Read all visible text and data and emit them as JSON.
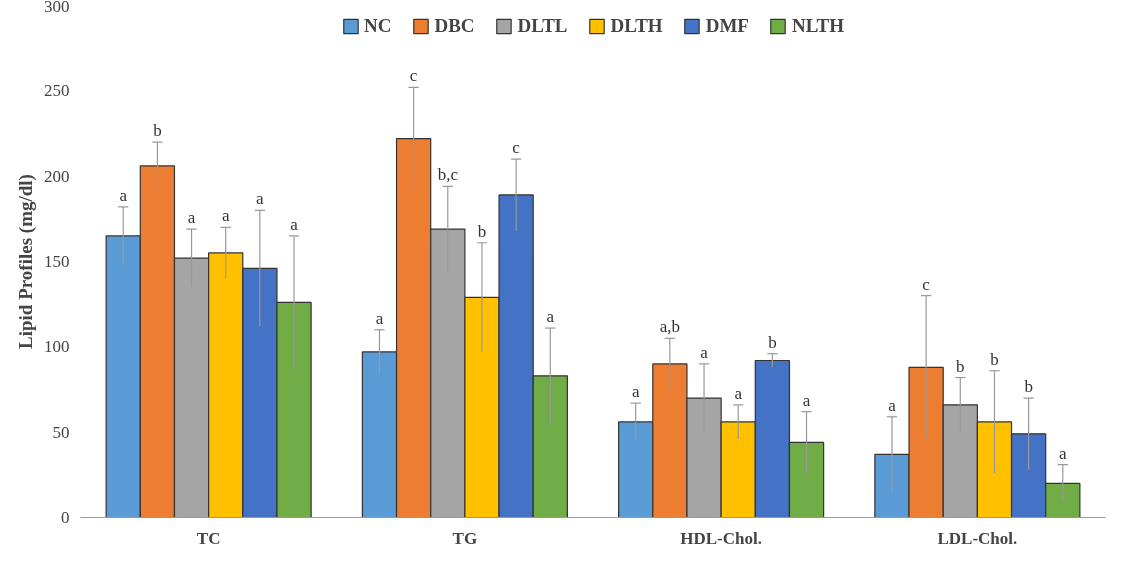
{
  "chart_data": {
    "type": "bar",
    "ylabel": "Lipid Profiles (mg/dl)",
    "categories": [
      "TC",
      "TG",
      "HDL-Chol.",
      "LDL-Chol."
    ],
    "ylim": [
      0,
      300
    ],
    "yticks": [
      0,
      50,
      100,
      150,
      200,
      250,
      300
    ],
    "grid": false,
    "legend": "top",
    "series": [
      {
        "name": "NC",
        "color": "#5b9bd5",
        "values": [
          165,
          97,
          56,
          37
        ],
        "errors": [
          17,
          13,
          11,
          22
        ]
      },
      {
        "name": "DBC",
        "color": "#ed7d31",
        "values": [
          206,
          222,
          90,
          88
        ],
        "errors": [
          14,
          30,
          15,
          42
        ]
      },
      {
        "name": "DLTL",
        "color": "#a5a5a5",
        "values": [
          152,
          169,
          70,
          66
        ],
        "errors": [
          17,
          25,
          20,
          16
        ]
      },
      {
        "name": "DLTH",
        "color": "#ffc000",
        "values": [
          155,
          129,
          56,
          56
        ],
        "errors": [
          15,
          32,
          10,
          30
        ]
      },
      {
        "name": "DMF",
        "color": "#4472c4",
        "values": [
          146,
          189,
          92,
          49
        ],
        "errors": [
          34,
          21,
          4,
          21
        ]
      },
      {
        "name": "NLTH",
        "color": "#70ad47",
        "values": [
          126,
          83,
          44,
          20
        ],
        "errors": [
          39,
          28,
          18,
          11
        ]
      }
    ],
    "annotations": [
      "a",
      "b",
      "a",
      "a",
      "a",
      "a",
      "a",
      "c",
      "b,c",
      "b",
      "c",
      "a",
      "a",
      "a,b",
      "a",
      "a",
      "b",
      "a",
      "a",
      "c",
      "b",
      "b",
      "b",
      "a"
    ]
  }
}
